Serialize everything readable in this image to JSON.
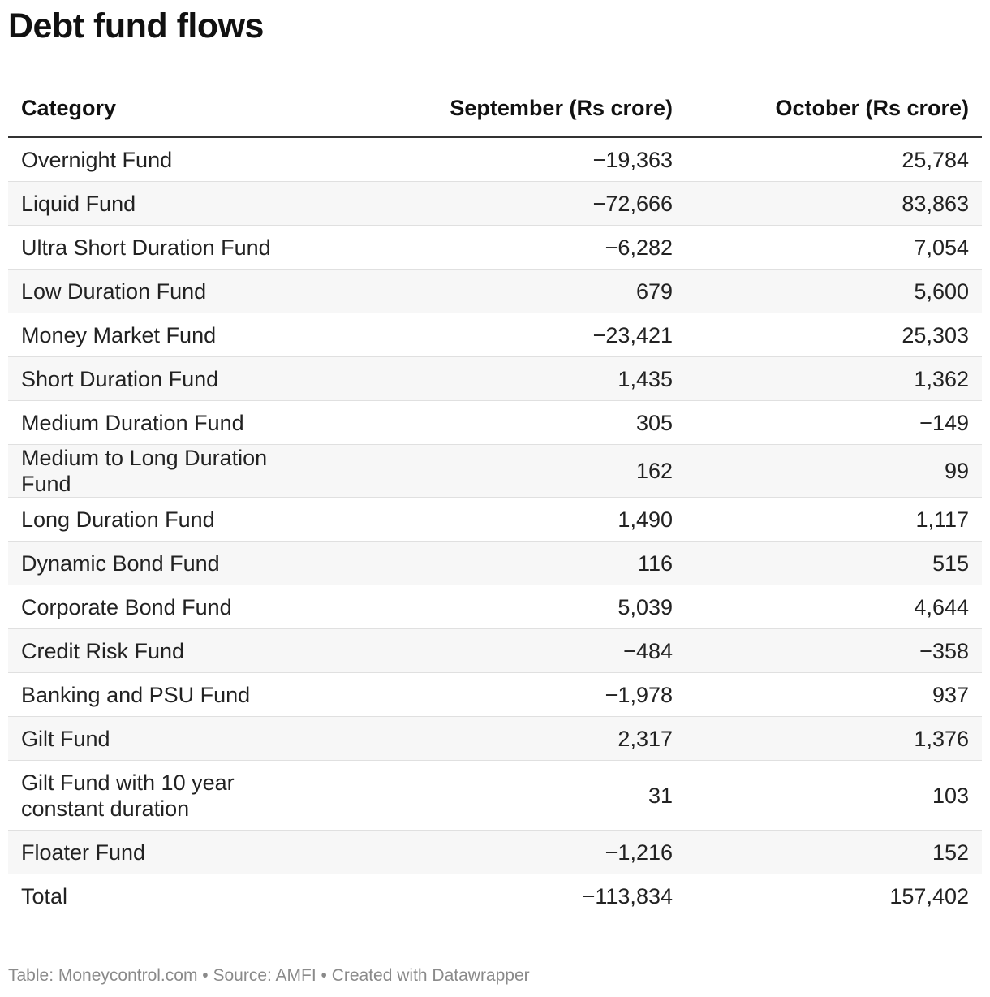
{
  "title": "Debt fund flows",
  "chart_data": {
    "type": "table",
    "title": "Debt fund flows",
    "columns": [
      "Category",
      "September (Rs crore)",
      "October (Rs crore)"
    ],
    "rows": [
      {
        "category": "Overnight Fund",
        "september": "−19,363",
        "october": "25,784"
      },
      {
        "category": "Liquid Fund",
        "september": "−72,666",
        "october": "83,863"
      },
      {
        "category": "Ultra Short Duration Fund",
        "september": "−6,282",
        "october": "7,054"
      },
      {
        "category": "Low Duration Fund",
        "september": "679",
        "october": "5,600"
      },
      {
        "category": "Money Market Fund",
        "september": "−23,421",
        "october": "25,303"
      },
      {
        "category": "Short Duration Fund",
        "september": "1,435",
        "october": "1,362"
      },
      {
        "category": "Medium Duration Fund",
        "september": "305",
        "october": "−149"
      },
      {
        "category": "Medium to Long Duration Fund",
        "september": "162",
        "october": "99"
      },
      {
        "category": "Long Duration Fund",
        "september": "1,490",
        "october": "1,117"
      },
      {
        "category": "Dynamic Bond Fund",
        "september": "116",
        "october": "515"
      },
      {
        "category": "Corporate Bond Fund",
        "september": "5,039",
        "october": "4,644"
      },
      {
        "category": "Credit Risk Fund",
        "september": "−484",
        "october": "−358"
      },
      {
        "category": "Banking and PSU Fund",
        "september": "−1,978",
        "october": "937"
      },
      {
        "category": "Gilt Fund",
        "september": "2,317",
        "october": "1,376"
      },
      {
        "category": "Gilt Fund with 10 year constant duration",
        "september": "31",
        "october": "103"
      },
      {
        "category": "Floater Fund",
        "september": "−1,216",
        "october": "152"
      },
      {
        "category": "Total",
        "september": "−113,834",
        "october": "157,402"
      }
    ]
  },
  "footer": "Table: Moneycontrol.com • Source: AMFI • Created with Datawrapper"
}
